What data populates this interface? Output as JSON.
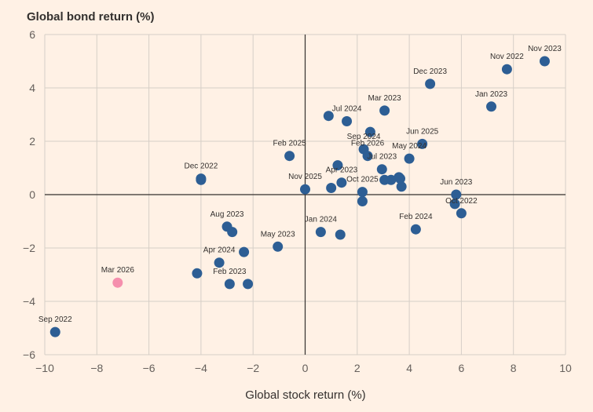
{
  "chart_data": {
    "type": "scatter",
    "title": "",
    "ylabel": "Global bond return (%)",
    "xlabel": "Global stock return (%)",
    "xlim": [
      -10,
      10
    ],
    "ylim": [
      -6,
      6
    ],
    "xticks": [
      "-10",
      "-8",
      "-6",
      "-4",
      "-2",
      "0",
      "2",
      "4",
      "6",
      "8",
      "10"
    ],
    "yticks": [
      "6",
      "4",
      "2",
      "0",
      "-2",
      "-4",
      "-6"
    ],
    "grid": true,
    "colors": {
      "point": "#2d5e94",
      "highlight": "#f58fad",
      "background": "#fff1e5"
    },
    "points": [
      {
        "x": 9.2,
        "y": 5.0,
        "label": "Nov 2023"
      },
      {
        "x": 7.75,
        "y": 4.7,
        "label": "Nov 2022"
      },
      {
        "x": 4.8,
        "y": 4.15,
        "label": "Dec 2023"
      },
      {
        "x": 7.15,
        "y": 3.3,
        "label": "Jan 2023"
      },
      {
        "x": 3.05,
        "y": 3.15,
        "label": "Mar 2023"
      },
      {
        "x": 0.9,
        "y": 2.95,
        "label": ""
      },
      {
        "x": 1.6,
        "y": 2.75,
        "label": "Jul 2024"
      },
      {
        "x": 2.5,
        "y": 2.35,
        "label": ""
      },
      {
        "x": 4.5,
        "y": 1.9,
        "label": "Jun 2025"
      },
      {
        "x": 2.25,
        "y": 1.7,
        "label": "Sep 2024"
      },
      {
        "x": 4.0,
        "y": 1.35,
        "label": "May 2024"
      },
      {
        "x": 2.4,
        "y": 1.45,
        "label": "Feb 2026"
      },
      {
        "x": -0.6,
        "y": 1.45,
        "label": "Feb 2025"
      },
      {
        "x": 1.25,
        "y": 1.1,
        "label": ""
      },
      {
        "x": 2.95,
        "y": 0.95,
        "label": "Jul 2023"
      },
      {
        "x": 3.6,
        "y": 0.65,
        "label": ""
      },
      {
        "x": 3.3,
        "y": 0.55,
        "label": ""
      },
      {
        "x": 3.05,
        "y": 0.55,
        "label": ""
      },
      {
        "x": 3.65,
        "y": 0.6,
        "label": ""
      },
      {
        "x": 3.7,
        "y": 0.3,
        "label": ""
      },
      {
        "x": 1.4,
        "y": 0.45,
        "label": "Apr 2023"
      },
      {
        "x": 1.0,
        "y": 0.25,
        "label": ""
      },
      {
        "x": 2.2,
        "y": 0.1,
        "label": "Oct 2025"
      },
      {
        "x": 2.2,
        "y": -0.25,
        "label": ""
      },
      {
        "x": 0.0,
        "y": 0.2,
        "label": "Nov 2025"
      },
      {
        "x": -4.0,
        "y": 0.6,
        "label": "Dec 2022"
      },
      {
        "x": -4.0,
        "y": 0.55,
        "label": ""
      },
      {
        "x": 5.8,
        "y": 0.0,
        "label": "Jun 2023"
      },
      {
        "x": 5.75,
        "y": -0.35,
        "label": ""
      },
      {
        "x": 6.0,
        "y": -0.7,
        "label": "Oct 2022"
      },
      {
        "x": 4.25,
        "y": -1.3,
        "label": "Feb 2024"
      },
      {
        "x": 0.6,
        "y": -1.4,
        "label": "Jan 2024"
      },
      {
        "x": 1.35,
        "y": -1.5,
        "label": ""
      },
      {
        "x": -3.0,
        "y": -1.2,
        "label": "Aug 2023"
      },
      {
        "x": -2.8,
        "y": -1.4,
        "label": ""
      },
      {
        "x": -1.05,
        "y": -1.95,
        "label": "May 2023"
      },
      {
        "x": -2.35,
        "y": -2.15,
        "label": ""
      },
      {
        "x": -3.3,
        "y": -2.55,
        "label": "Apr 2024"
      },
      {
        "x": -4.15,
        "y": -2.95,
        "label": ""
      },
      {
        "x": -2.9,
        "y": -3.35,
        "label": "Feb 2023"
      },
      {
        "x": -2.2,
        "y": -3.35,
        "label": ""
      },
      {
        "x": -7.2,
        "y": -3.3,
        "label": "Mar 2026",
        "highlight": true
      },
      {
        "x": -9.6,
        "y": -5.15,
        "label": "Sep 2022"
      }
    ]
  }
}
